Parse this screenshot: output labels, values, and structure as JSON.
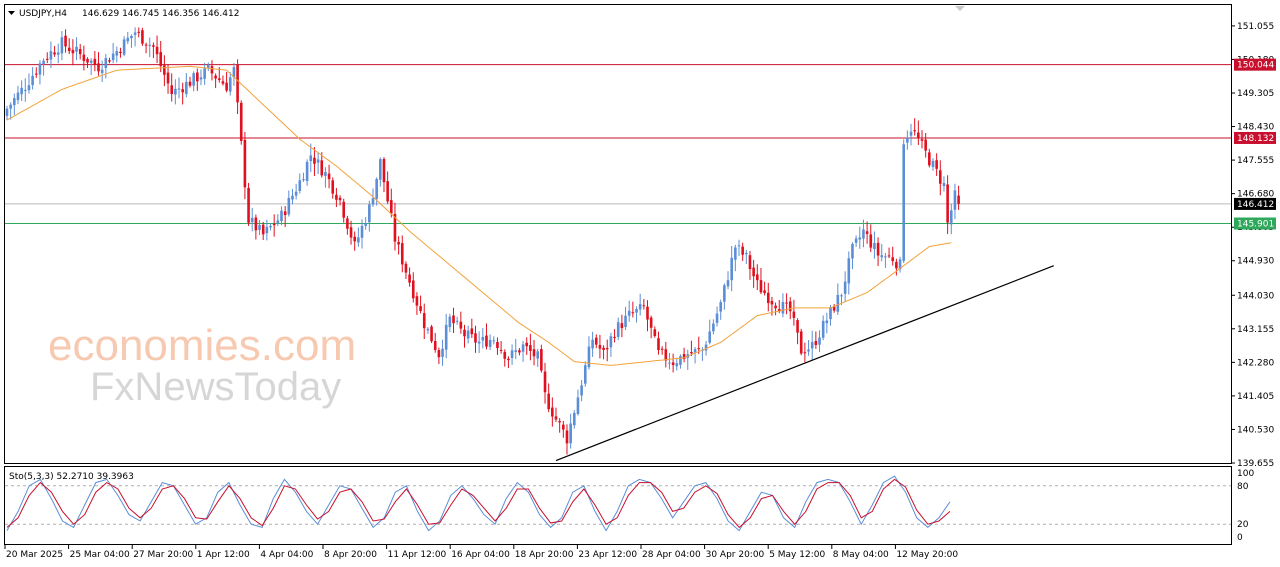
{
  "header": {
    "dropdown_icon": "triangle-down-icon",
    "symbol": "USDJPY,H4",
    "ohlc": "146.629 146.745 146.356 146.412"
  },
  "watermark": {
    "line1": "economies.com",
    "line2": "FxNewsToday"
  },
  "colors": {
    "bull": "#5b8ed6",
    "bear": "#e0101e",
    "ma": "#f2a23a",
    "resistance": "#c8102e",
    "support": "#2ea85a",
    "current": "#000000",
    "trendline": "#000000",
    "stoch_main": "#5b8ed6",
    "stoch_signal": "#c8102e"
  },
  "chart_data": [
    {
      "type": "candlestick",
      "timeframe": "H4",
      "ylim": [
        139.655,
        151.6
      ],
      "y_ticks": [
        "151.055",
        "150.180",
        "149.305",
        "148.430",
        "147.555",
        "146.680",
        "145.805",
        "144.930",
        "144.030",
        "143.155",
        "142.280",
        "141.405",
        "140.530",
        "139.655"
      ],
      "x_ticks": [
        "20 Mar 2025",
        "25 Mar 04:00",
        "27 Mar 20:00",
        "1 Apr 12:00",
        "4 Apr 04:00",
        "8 Apr 20:00",
        "11 Apr 12:00",
        "16 Apr 04:00",
        "18 Apr 20:00",
        "23 Apr 12:00",
        "28 Apr 04:00",
        "30 Apr 20:00",
        "5 May 12:00",
        "8 May 04:00",
        "12 May 20:00"
      ],
      "close_path": [
        [
          0,
          148.9
        ],
        [
          5,
          149.5
        ],
        [
          10,
          150.2
        ],
        [
          15,
          150.6
        ],
        [
          20,
          150.3
        ],
        [
          25,
          150.0
        ],
        [
          30,
          150.4
        ],
        [
          35,
          150.9
        ],
        [
          40,
          150.5
        ],
        [
          45,
          149.3
        ],
        [
          50,
          149.6
        ],
        [
          55,
          149.9
        ],
        [
          60,
          149.5
        ],
        [
          62,
          149.9
        ],
        [
          66,
          146.0
        ],
        [
          70,
          145.6
        ],
        [
          75,
          146.1
        ],
        [
          80,
          147.0
        ],
        [
          83,
          147.7
        ],
        [
          87,
          147.2
        ],
        [
          91,
          146.5
        ],
        [
          95,
          145.3
        ],
        [
          99,
          146.3
        ],
        [
          102,
          147.5
        ],
        [
          106,
          145.5
        ],
        [
          110,
          144.4
        ],
        [
          114,
          143.3
        ],
        [
          118,
          142.5
        ],
        [
          121,
          143.4
        ],
        [
          125,
          143.0
        ],
        [
          129,
          142.8
        ],
        [
          133,
          142.9
        ],
        [
          137,
          142.4
        ],
        [
          141,
          142.7
        ],
        [
          145,
          142.4
        ],
        [
          147,
          141.4
        ],
        [
          150,
          140.8
        ],
        [
          153,
          140.3
        ],
        [
          156,
          141.4
        ],
        [
          160,
          142.9
        ],
        [
          163,
          142.5
        ],
        [
          166,
          143.1
        ],
        [
          170,
          143.5
        ],
        [
          174,
          143.7
        ],
        [
          178,
          142.5
        ],
        [
          182,
          142.3
        ],
        [
          186,
          142.5
        ],
        [
          190,
          142.6
        ],
        [
          195,
          143.8
        ],
        [
          199,
          145.3
        ],
        [
          202,
          145.0
        ],
        [
          205,
          144.3
        ],
        [
          209,
          143.9
        ],
        [
          214,
          143.6
        ],
        [
          217,
          142.6
        ],
        [
          220,
          142.7
        ],
        [
          224,
          143.4
        ],
        [
          228,
          144.1
        ],
        [
          231,
          145.2
        ],
        [
          234,
          145.7
        ],
        [
          236,
          145.4
        ],
        [
          238,
          145.1
        ],
        [
          242,
          145.0
        ],
        [
          244,
          144.8
        ],
        [
          245,
          148.1
        ],
        [
          247,
          148.4
        ],
        [
          250,
          147.9
        ],
        [
          253,
          147.4
        ],
        [
          256,
          146.9
        ],
        [
          257,
          145.9
        ],
        [
          259,
          146.6
        ],
        [
          260,
          146.412
        ]
      ],
      "ma_path": [
        [
          0,
          148.6
        ],
        [
          15,
          149.4
        ],
        [
          30,
          149.9
        ],
        [
          50,
          150.0
        ],
        [
          60,
          149.9
        ],
        [
          70,
          149.0
        ],
        [
          80,
          148.1
        ],
        [
          90,
          147.4
        ],
        [
          100,
          146.6
        ],
        [
          110,
          145.7
        ],
        [
          120,
          144.9
        ],
        [
          130,
          144.1
        ],
        [
          140,
          143.3
        ],
        [
          148,
          142.8
        ],
        [
          155,
          142.3
        ],
        [
          165,
          142.2
        ],
        [
          175,
          142.3
        ],
        [
          185,
          142.4
        ],
        [
          195,
          142.8
        ],
        [
          205,
          143.5
        ],
        [
          215,
          143.7
        ],
        [
          225,
          143.7
        ],
        [
          235,
          144.1
        ],
        [
          245,
          144.8
        ],
        [
          252,
          145.3
        ],
        [
          258,
          145.4
        ]
      ],
      "levels": [
        {
          "value": 150.044,
          "label": "150.044",
          "kind": "resistance"
        },
        {
          "value": 148.132,
          "label": "148.132",
          "kind": "resistance"
        },
        {
          "value": 146.412,
          "label": "146.412",
          "kind": "current"
        },
        {
          "value": 145.901,
          "label": "145.901",
          "kind": "support"
        }
      ],
      "trendline": {
        "from": [
          150,
          139.72
        ],
        "to": [
          286,
          144.8
        ]
      }
    },
    {
      "type": "line",
      "title": "Sto(5,3,3) 52.2710 39.3963",
      "ylim": [
        0,
        100
      ],
      "y_ticks": [
        "100",
        "80",
        "20",
        "0"
      ],
      "levels": [
        80,
        20
      ],
      "series": [
        {
          "name": "main",
          "values": [
            10,
            40,
            80,
            90,
            60,
            25,
            15,
            50,
            85,
            90,
            65,
            35,
            25,
            55,
            85,
            80,
            50,
            20,
            30,
            70,
            85,
            50,
            20,
            15,
            60,
            90,
            70,
            40,
            20,
            50,
            80,
            75,
            45,
            15,
            30,
            70,
            80,
            40,
            10,
            25,
            65,
            80,
            60,
            35,
            20,
            60,
            85,
            70,
            35,
            15,
            30,
            70,
            80,
            40,
            10,
            40,
            80,
            90,
            85,
            60,
            30,
            55,
            80,
            85,
            60,
            25,
            10,
            40,
            70,
            65,
            30,
            15,
            55,
            85,
            90,
            85,
            55,
            20,
            50,
            85,
            95,
            70,
            30,
            15,
            30,
            55
          ]
        },
        {
          "name": "signal",
          "values": [
            15,
            30,
            65,
            85,
            70,
            40,
            20,
            35,
            70,
            85,
            75,
            45,
            30,
            45,
            75,
            80,
            60,
            30,
            28,
            55,
            80,
            60,
            30,
            18,
            45,
            80,
            75,
            50,
            28,
            40,
            70,
            75,
            55,
            25,
            28,
            55,
            75,
            50,
            20,
            22,
            50,
            75,
            65,
            45,
            25,
            45,
            75,
            75,
            45,
            22,
            25,
            55,
            75,
            50,
            20,
            30,
            65,
            85,
            85,
            70,
            40,
            45,
            70,
            80,
            68,
            35,
            15,
            30,
            60,
            65,
            40,
            20,
            40,
            75,
            85,
            85,
            65,
            30,
            40,
            75,
            90,
            78,
            42,
            20,
            25,
            40
          ]
        }
      ]
    }
  ]
}
